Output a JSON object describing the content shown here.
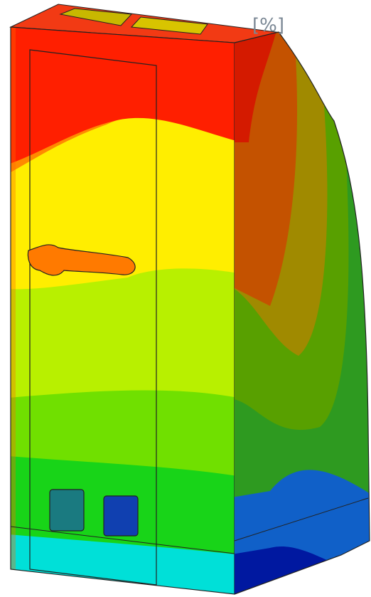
{
  "unit_label": "[%]"
}
